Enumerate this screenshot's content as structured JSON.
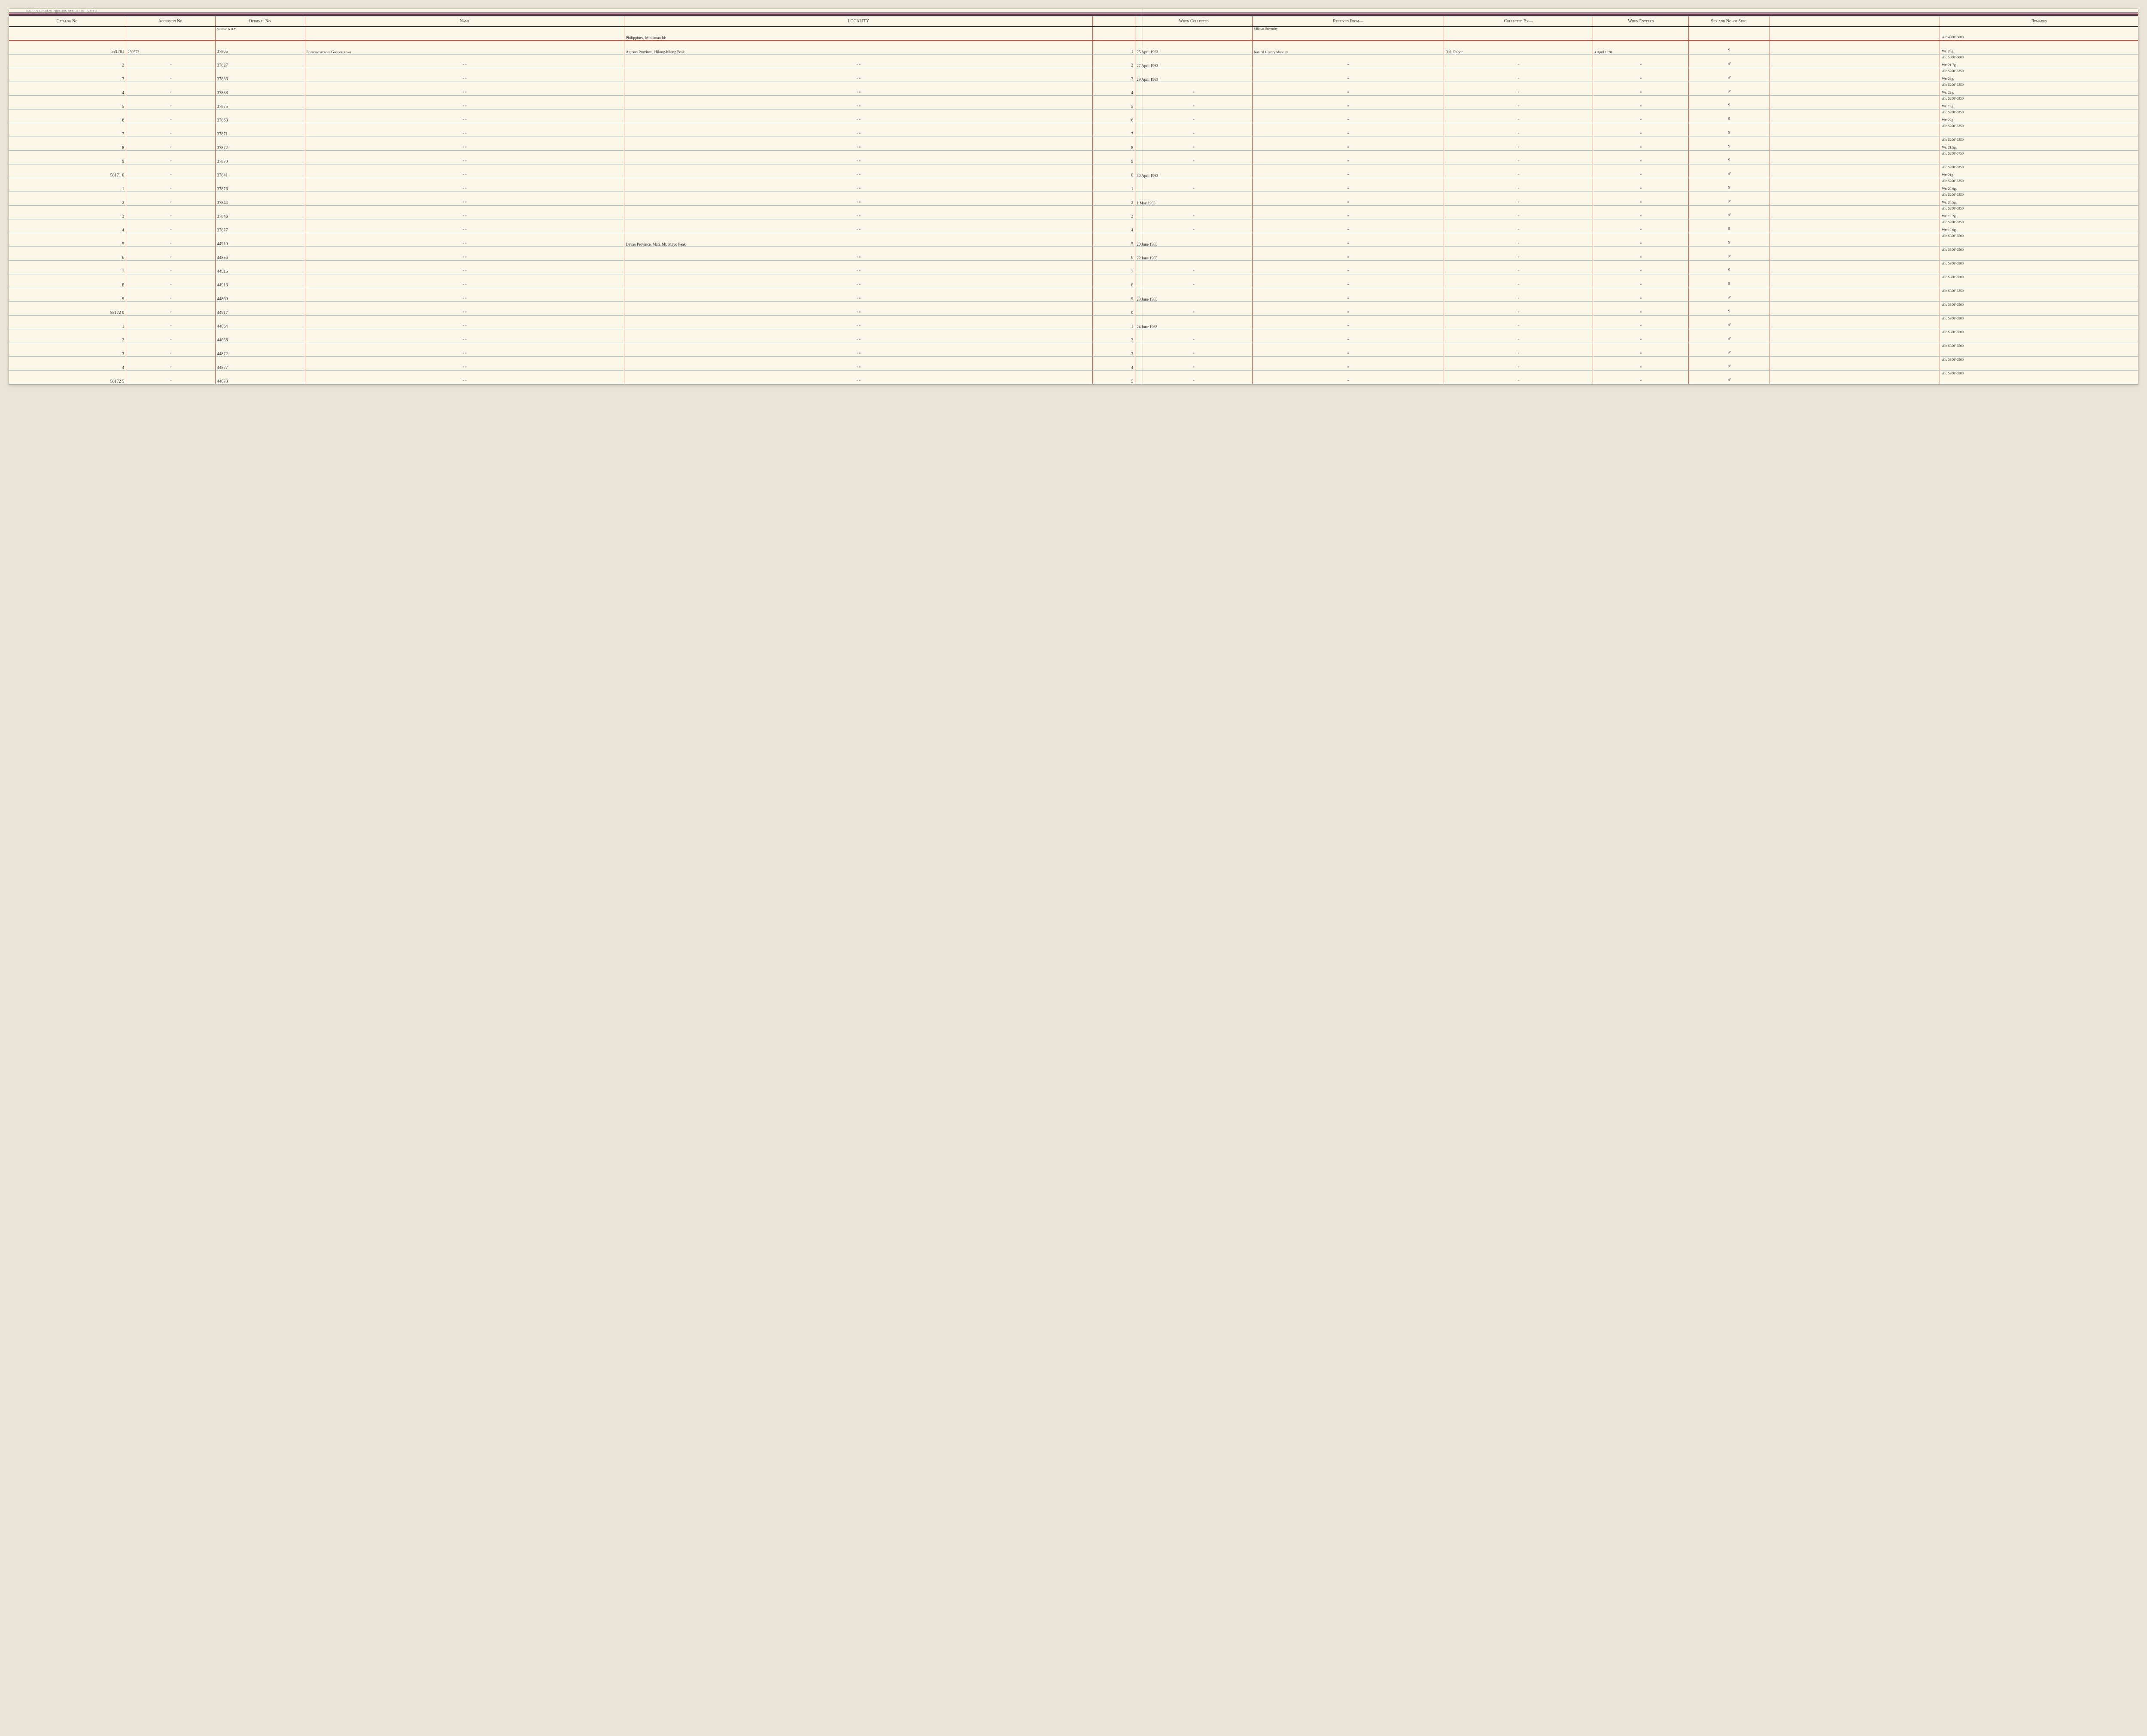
{
  "printLine": "U.S. GOVERNMENT PRINTING OFFICE : 16—72491-3",
  "headers": {
    "catalog": "Catalog No.",
    "accession": "Accession No.",
    "original": "Original No.",
    "name": "Name",
    "locality": "LOCALITY",
    "when": "When Collected",
    "from": "Received From—",
    "by": "Collected By—",
    "entered": "When Entered",
    "sex": "Sex and No. of Spec.",
    "remarks": "Remarks"
  },
  "localityHeader": "Philippines, Mindanao Id:",
  "originalSup": "Silliman N.H.M.",
  "fromSup": "Silliman University",
  "topRemarks": "Alt: 4000'-5000'",
  "rows": [
    {
      "catalog": "581701",
      "accession": "250573",
      "original": "37865",
      "name": "Lophozosterops Goodfellowi",
      "locality": "Agusan Province, Hilong-hilong Peak",
      "spacer": "1",
      "when": "25 April 1963",
      "from": "Natural History Museum",
      "by": "D.S. Rabor",
      "entered": "4 April 1978",
      "sex": "♀",
      "rTop": "",
      "rBot": "Wt: 20g."
    },
    {
      "catalog": "2",
      "accession": "\"",
      "original": "37827",
      "name": "\"        \"",
      "locality": "\"        \"",
      "spacer": "2",
      "when": "27 April 1963",
      "from": "\"",
      "by": "\"",
      "entered": "\"",
      "sex": "♂",
      "rTop": "Alt: 5000'-6000'",
      "rBot": "Wt: 21.7g."
    },
    {
      "catalog": "3",
      "accession": "\"",
      "original": "37836",
      "name": "\"        \"",
      "locality": "\"        \"",
      "spacer": "3",
      "when": "29 April 1963",
      "from": "\"",
      "by": "\"",
      "entered": "\"",
      "sex": "♂",
      "rTop": "Alt: 5200'-6350'",
      "rBot": "Wt: 24g."
    },
    {
      "catalog": "4",
      "accession": "\"",
      "original": "37838",
      "name": "\"        \"",
      "locality": "\"        \"",
      "spacer": "4",
      "when": "\"",
      "from": "\"",
      "by": "\"",
      "entered": "\"",
      "sex": "♂",
      "rTop": "Alt: 5200'-6350'",
      "rBot": "Wt: 22g."
    },
    {
      "catalog": "5",
      "accession": "\"",
      "original": "37875",
      "name": "\"        \"",
      "locality": "\"        \"",
      "spacer": "5",
      "when": "\"",
      "from": "\"",
      "by": "\"",
      "entered": "\"",
      "sex": "♀",
      "rTop": "Alt: 5200'-6350'",
      "rBot": "Wt: 19g."
    },
    {
      "catalog": "6",
      "accession": "\"",
      "original": "37868",
      "name": "\"        \"",
      "locality": "\"        \"",
      "spacer": "6",
      "when": "\"",
      "from": "\"",
      "by": "\"",
      "entered": "\"",
      "sex": "♀",
      "rTop": "Alt: 5200'-6350'",
      "rBot": "Wt: 22g."
    },
    {
      "catalog": "7",
      "accession": "\"",
      "original": "37871",
      "name": "\"        \"",
      "locality": "\"        \"",
      "spacer": "7",
      "when": "\"",
      "from": "\"",
      "by": "\"",
      "entered": "\"",
      "sex": "♀",
      "rTop": "Alt: 5200'-6350'",
      "rBot": ""
    },
    {
      "catalog": "8",
      "accession": "\"",
      "original": "37872",
      "name": "\"        \"",
      "locality": "\"        \"",
      "spacer": "8",
      "when": "\"",
      "from": "\"",
      "by": "\"",
      "entered": "\"",
      "sex": "♀",
      "rTop": "Alt: 5200'-6350'",
      "rBot": "Wt: 21.5g."
    },
    {
      "catalog": "9",
      "accession": "\"",
      "original": "37870",
      "name": "\"        \"",
      "locality": "\"        \"",
      "spacer": "9",
      "when": "\"",
      "from": "\"",
      "by": "\"",
      "entered": "\"",
      "sex": "♀",
      "rTop": "Alt: 5200'-6750'",
      "rBot": ""
    },
    {
      "catalog": "58171 0",
      "accession": "\"",
      "original": "37841",
      "name": "\"        \"",
      "locality": "\"        \"",
      "spacer": "0",
      "when": "30 April 1963",
      "from": "\"",
      "by": "\"",
      "entered": "\"",
      "sex": "♂",
      "rTop": "Alt: 5200'-6350'",
      "rBot": "Wt: 21g."
    },
    {
      "catalog": "1",
      "accession": "\"",
      "original": "37876",
      "name": "\"        \"",
      "locality": "\"        \"",
      "spacer": "1",
      "when": "\"",
      "from": "\"",
      "by": "\"",
      "entered": "\"",
      "sex": "♀",
      "rTop": "Alt: 5200'-6350'",
      "rBot": "Wt: 20.6g."
    },
    {
      "catalog": "2",
      "accession": "\"",
      "original": "37844",
      "name": "\"        \"",
      "locality": "\"        \"",
      "spacer": "2",
      "when": "1 May 1963",
      "from": "\"",
      "by": "\"",
      "entered": "\"",
      "sex": "♂",
      "rTop": "Alt: 5200'-6350'",
      "rBot": "Wt: 20.5g."
    },
    {
      "catalog": "3",
      "accession": "\"",
      "original": "37846",
      "name": "\"        \"",
      "locality": "\"        \"",
      "spacer": "3",
      "when": "\"",
      "from": "\"",
      "by": "\"",
      "entered": "\"",
      "sex": "♂",
      "rTop": "Alt: 5200'-6350'",
      "rBot": "Wt: 19.2g."
    },
    {
      "catalog": "4",
      "accession": "\"",
      "original": "37877",
      "name": "\"        \"",
      "locality": "\"        \"",
      "spacer": "4",
      "when": "\"",
      "from": "\"",
      "by": "\"",
      "entered": "\"",
      "sex": "♀",
      "rTop": "Alt: 5200'-6350'",
      "rBot": "Wt: 19.6g."
    },
    {
      "catalog": "5",
      "accession": "\"",
      "original": "44910",
      "name": "\"        \"",
      "locality": "Davao Province, Mati, Mt. Mayo Peak",
      "spacer": "5",
      "when": "20 June 1965",
      "from": "\"",
      "by": "\"",
      "entered": "\"",
      "sex": "♀",
      "rTop": "Alt: 5300'-6500'",
      "rBot": ""
    },
    {
      "catalog": "6",
      "accession": "\"",
      "original": "44856",
      "name": "\"        \"",
      "locality": "\"        \"",
      "spacer": "6",
      "when": "22 June 1965",
      "from": "\"",
      "by": "\"",
      "entered": "\"",
      "sex": "♂",
      "rTop": "Alt: 5300'-6500'",
      "rBot": ""
    },
    {
      "catalog": "7",
      "accession": "\"",
      "original": "44915",
      "name": "\"        \"",
      "locality": "\"        \"",
      "spacer": "7",
      "when": "\"",
      "from": "\"",
      "by": "\"",
      "entered": "\"",
      "sex": "♀",
      "rTop": "Alt: 5300'-6500'",
      "rBot": ""
    },
    {
      "catalog": "8",
      "accession": "\"",
      "original": "44916",
      "name": "\"        \"",
      "locality": "\"        \"",
      "spacer": "8",
      "when": "\"",
      "from": "\"",
      "by": "\"",
      "entered": "\"",
      "sex": "♀",
      "rTop": "Alt: 5300'-6500'",
      "rBot": ""
    },
    {
      "catalog": "9",
      "accession": "\"",
      "original": "44860",
      "name": "\"        \"",
      "locality": "\"        \"",
      "spacer": "9",
      "when": "23 June 1965",
      "from": "\"",
      "by": "\"",
      "entered": "\"",
      "sex": "♂",
      "rTop": "Alt: 5300'-6350'",
      "rBot": ""
    },
    {
      "catalog": "58172 0",
      "accession": "\"",
      "original": "44917",
      "name": "\"        \"",
      "locality": "\"        \"",
      "spacer": "0",
      "when": "\"",
      "from": "\"",
      "by": "\"",
      "entered": "\"",
      "sex": "♀",
      "rTop": "Alt: 5300'-6500'",
      "rBot": ""
    },
    {
      "catalog": "1",
      "accession": "\"",
      "original": "44864",
      "name": "\"        \"",
      "locality": "\"        \"",
      "spacer": "1",
      "when": "24 June 1965",
      "from": "\"",
      "by": "\"",
      "entered": "\"",
      "sex": "♂",
      "rTop": "Alt: 5300'-6500'",
      "rBot": ""
    },
    {
      "catalog": "2",
      "accession": "\"",
      "original": "44866",
      "name": "\"        \"",
      "locality": "\"        \"",
      "spacer": "2",
      "when": "\"",
      "from": "\"",
      "by": "\"",
      "entered": "\"",
      "sex": "♂",
      "rTop": "Alt: 5300'-6500'",
      "rBot": ""
    },
    {
      "catalog": "3",
      "accession": "\"",
      "original": "44872",
      "name": "\"        \"",
      "locality": "\"        \"",
      "spacer": "3",
      "when": "\"",
      "from": "\"",
      "by": "\"",
      "entered": "\"",
      "sex": "♂",
      "rTop": "Alt: 5300'-6500'",
      "rBot": ""
    },
    {
      "catalog": "4",
      "accession": "\"",
      "original": "44877",
      "name": "\"        \"",
      "locality": "\"        \"",
      "spacer": "4",
      "when": "\"",
      "from": "\"",
      "by": "\"",
      "entered": "\"",
      "sex": "♂",
      "rTop": "Alt: 5300'-6500'",
      "rBot": ""
    },
    {
      "catalog": "58172 5",
      "accession": "\"",
      "original": "44878",
      "name": "\"        \"",
      "locality": "\"        \"",
      "spacer": "5",
      "when": "\"",
      "from": "\"",
      "by": "\"",
      "entered": "\"",
      "sex": "♂",
      "rTop": "Alt: 5300'-6500'",
      "rBot": ""
    }
  ]
}
